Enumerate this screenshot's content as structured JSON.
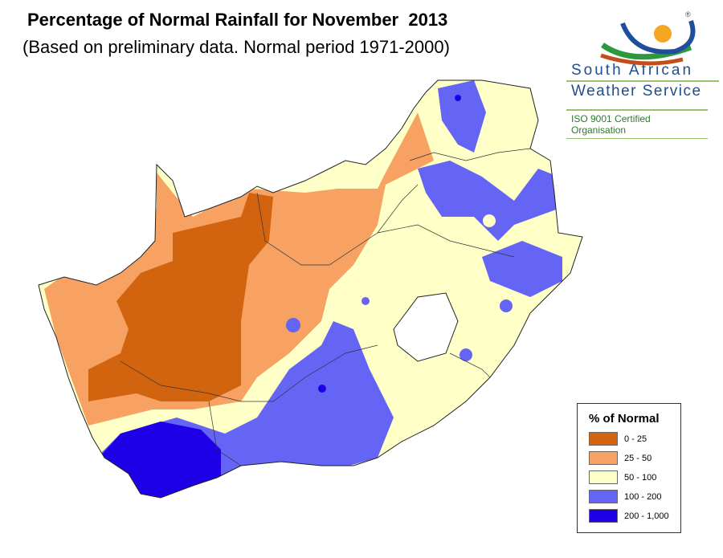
{
  "header": {
    "title": "Percentage of Normal Rainfall for November  2013",
    "subtitle": "(Based on preliminary data. Normal period 1971-2000)"
  },
  "logo": {
    "line1": "South African",
    "line2": "Weather Service",
    "iso": "ISO 9001 Certified Organisation",
    "registered": "®"
  },
  "legend": {
    "title": "% of Normal",
    "items": [
      {
        "label": "0 - 25",
        "color": "#d2640f"
      },
      {
        "label": "25 - 50",
        "color": "#f7a263"
      },
      {
        "label": "50 - 100",
        "color": "#ffffc8"
      },
      {
        "label": "100 - 200",
        "color": "#6464f5"
      },
      {
        "label": "200 - 1,000",
        "color": "#1e00e6"
      }
    ]
  }
}
